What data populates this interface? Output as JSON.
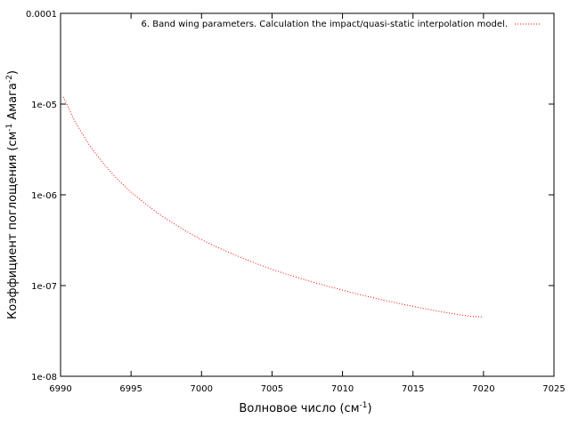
{
  "chart_data": {
    "type": "line",
    "title": "",
    "xlabel": "Волновое число (см",
    "xlabel_sup": "-1",
    "xlabel_end": ")",
    "ylabel": "Коэффициент поглощения (см",
    "ylabel_sup1": "-1",
    "ylabel_mid": " Амага",
    "ylabel_sup2": "-2",
    "ylabel_end": ")",
    "xlim": [
      6990,
      7025
    ],
    "ylim": [
      1e-08,
      0.0001
    ],
    "yscale": "log",
    "grid": false,
    "legend_position": "top-right",
    "x_ticks": [
      6990,
      6995,
      7000,
      7005,
      7010,
      7015,
      7020,
      7025
    ],
    "x_tick_labels": [
      "6990",
      "6995",
      "7000",
      "7005",
      "7010",
      "7015",
      "7020",
      "7025"
    ],
    "y_ticks": [
      1e-08,
      1e-07,
      1e-06,
      1e-05,
      0.0001
    ],
    "y_tick_labels": [
      "1e-08",
      "1e-07",
      "1e-06",
      "1e-05",
      "0.0001"
    ],
    "series": [
      {
        "name": "6. Band wing parameters. Calculation the impact/quasi-static interpolation model.",
        "color": "#ff0000",
        "x": [
          6990.2,
          6991,
          6992,
          6993,
          6994,
          6995,
          6996,
          6997,
          6998,
          6999,
          7000,
          7001,
          7002,
          7003,
          7004,
          7005,
          7006,
          7007,
          7008,
          7009,
          7010,
          7011,
          7012,
          7013,
          7014,
          7015,
          7016,
          7017,
          7018,
          7019,
          7020
        ],
        "y": [
          1.2e-05,
          6.5e-06,
          3.6e-06,
          2.25e-06,
          1.5e-06,
          1.07e-06,
          8e-07,
          6.1e-07,
          4.85e-07,
          3.9e-07,
          3.2e-07,
          2.7e-07,
          2.3e-07,
          1.98e-07,
          1.72e-07,
          1.51e-07,
          1.34e-07,
          1.2e-07,
          1.08e-07,
          9.8e-08,
          8.9e-08,
          8.1e-08,
          7.45e-08,
          6.85e-08,
          6.35e-08,
          5.9e-08,
          5.5e-08,
          5.15e-08,
          4.85e-08,
          4.6e-08,
          4.5e-08
        ]
      }
    ]
  }
}
